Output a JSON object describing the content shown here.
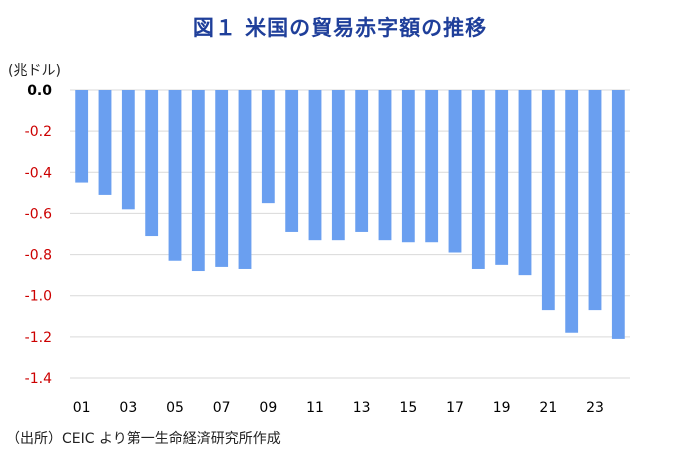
{
  "title": "図１ 米国の貿易赤字額の推移",
  "unit": "(兆ドル)",
  "source": "（出所）CEIC より第一生命経済研究所作成",
  "colors": {
    "bar": "#6a9ff0",
    "grid": "#d9d9d9",
    "title": "#1f3f9a",
    "negative_tick": "#cc0000"
  },
  "chart_data": {
    "type": "bar",
    "title": "図１ 米国の貿易赤字額の推移",
    "ylabel": "(兆ドル)",
    "ylim": [
      -1.4,
      0.0
    ],
    "yticks": [
      "0.0",
      "-0.2",
      "-0.4",
      "-0.6",
      "-0.8",
      "-1.0",
      "-1.2",
      "-1.4"
    ],
    "ytick_values": [
      0.0,
      -0.2,
      -0.4,
      -0.6,
      -0.8,
      -1.0,
      -1.2,
      -1.4
    ],
    "grid": true,
    "categories": [
      "01",
      "02",
      "03",
      "04",
      "05",
      "06",
      "07",
      "08",
      "09",
      "10",
      "11",
      "12",
      "13",
      "14",
      "15",
      "16",
      "17",
      "18",
      "19",
      "20",
      "21",
      "22",
      "23",
      "24"
    ],
    "xtick_labels": [
      "01",
      "",
      "03",
      "",
      "05",
      "",
      "07",
      "",
      "09",
      "",
      "11",
      "",
      "13",
      "",
      "15",
      "",
      "17",
      "",
      "19",
      "",
      "21",
      "",
      "23",
      ""
    ],
    "values": [
      -0.45,
      -0.51,
      -0.58,
      -0.71,
      -0.83,
      -0.88,
      -0.86,
      -0.87,
      -0.55,
      -0.69,
      -0.73,
      -0.73,
      -0.69,
      -0.73,
      -0.74,
      -0.74,
      -0.79,
      -0.87,
      -0.85,
      -0.9,
      -1.07,
      -1.18,
      -1.07,
      -1.21
    ]
  }
}
